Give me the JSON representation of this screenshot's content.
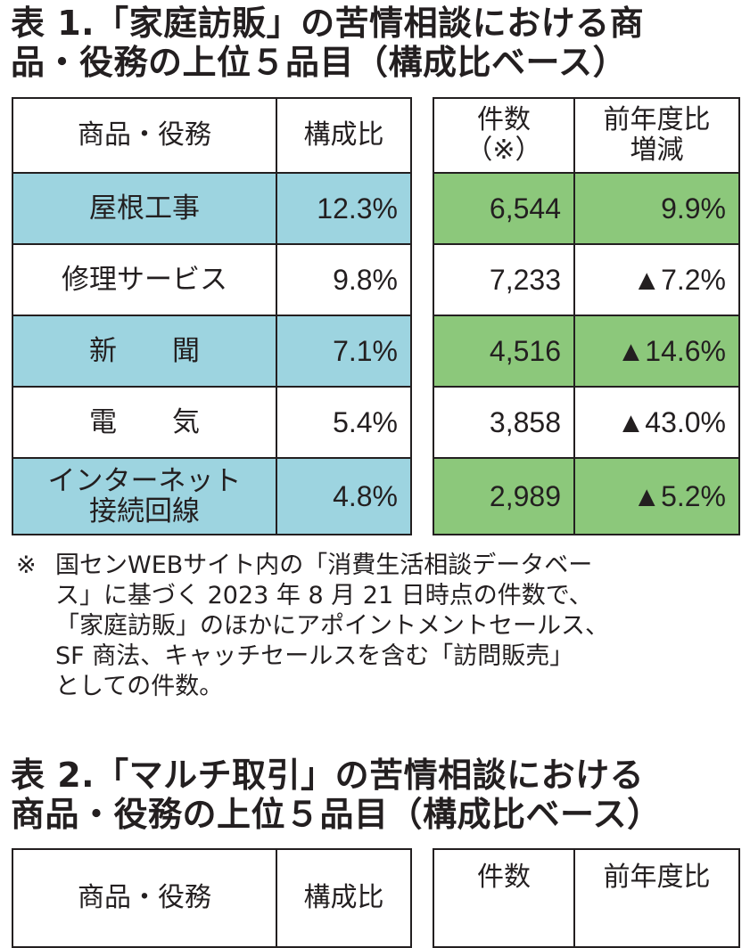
{
  "table1": {
    "title_lines": [
      "表 1.「家庭訪販」の苦情相談における商",
      "品・役務の上位５品目（構成比ベース）"
    ],
    "headers": {
      "item": "商品・役務",
      "share": "構成比",
      "count_lines": [
        "件数",
        "（※）"
      ],
      "change_lines": [
        "前年度比",
        "増減"
      ]
    },
    "rows": [
      {
        "item_lines": [
          "屋根工事"
        ],
        "share": "12.3%",
        "count": "6,544",
        "change": "9.9%",
        "highlight": true
      },
      {
        "item_lines": [
          "修理サービス"
        ],
        "share": "9.8%",
        "count": "7,233",
        "change": "▲7.2%",
        "highlight": false
      },
      {
        "item_lines": [
          "新　　聞"
        ],
        "share": "7.1%",
        "count": "4,516",
        "change": "▲14.6%",
        "highlight": true
      },
      {
        "item_lines": [
          "電　　気"
        ],
        "share": "5.4%",
        "count": "3,858",
        "change": "▲43.0%",
        "highlight": false
      },
      {
        "item_lines": [
          "インターネット",
          "接続回線"
        ],
        "share": "4.8%",
        "count": "2,989",
        "change": "▲5.2%",
        "highlight": true
      }
    ],
    "note_mark": "※",
    "note_lines": [
      "国センWEBサイト内の「消費生活相談データベー",
      "ス」に基づく 2023 年 8 月 21 日時点の件数で、",
      "「家庭訪販」のほかにアポイントメントセールス、",
      "SF 商法、キャッチセールスを含む「訪問販売」",
      "としての件数。"
    ]
  },
  "table2": {
    "title_lines": [
      "表 2.「マルチ取引」の苦情相談における",
      "商品・役務の上位５品目（構成比ベース）"
    ],
    "headers": {
      "item": "商品・役務",
      "share": "構成比",
      "count": "件数",
      "change": "前年度比"
    }
  },
  "colors": {
    "highlight_left": "#9dd4e0",
    "highlight_right": "#8cc87b",
    "border": "#231f20"
  }
}
